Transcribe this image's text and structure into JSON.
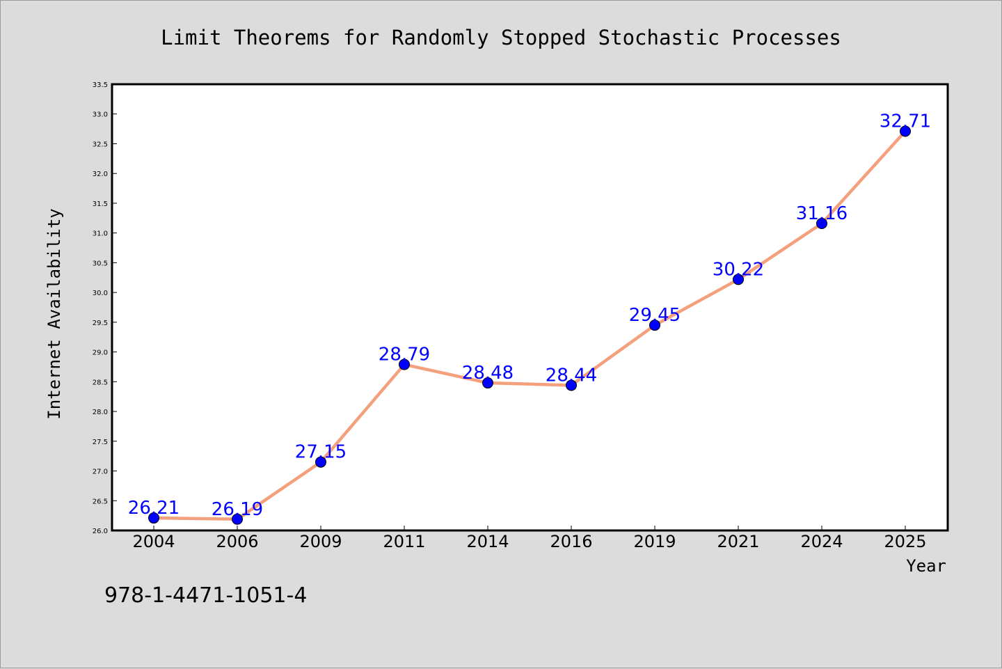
{
  "chart_data": {
    "type": "line",
    "title": "Limit Theorems for Randomly Stopped Stochastic Processes",
    "xlabel": "Year",
    "ylabel": "Internet Availability",
    "categories": [
      "2004",
      "2006",
      "2009",
      "2011",
      "2014",
      "2016",
      "2019",
      "2021",
      "2024",
      "2025"
    ],
    "series": [
      {
        "values": [
          26.21,
          26.19,
          27.15,
          28.79,
          28.48,
          28.44,
          29.45,
          30.22,
          31.16,
          32.71
        ]
      }
    ],
    "data_labels": [
      "26.21",
      "26.19",
      "27.15",
      "28.79",
      "28.48",
      "28.44",
      "29.45",
      "30.22",
      "31.16",
      "32.71"
    ],
    "ylim": [
      26.0,
      33.5
    ],
    "yticks": [
      "26.0",
      "26.5",
      "27.0",
      "27.5",
      "28.0",
      "28.5",
      "29.0",
      "29.5",
      "30.0",
      "30.5",
      "31.0",
      "31.5",
      "32.0",
      "32.5",
      "33.0",
      "33.5"
    ],
    "grid": false,
    "line_color": "#f4a07c",
    "marker_color": "#0000ff",
    "label_color": "#0000ff",
    "background": "#dcdcdc",
    "plot_background": "#ffffff"
  },
  "footer": {
    "isbn": "978-1-4471-1051-4"
  }
}
